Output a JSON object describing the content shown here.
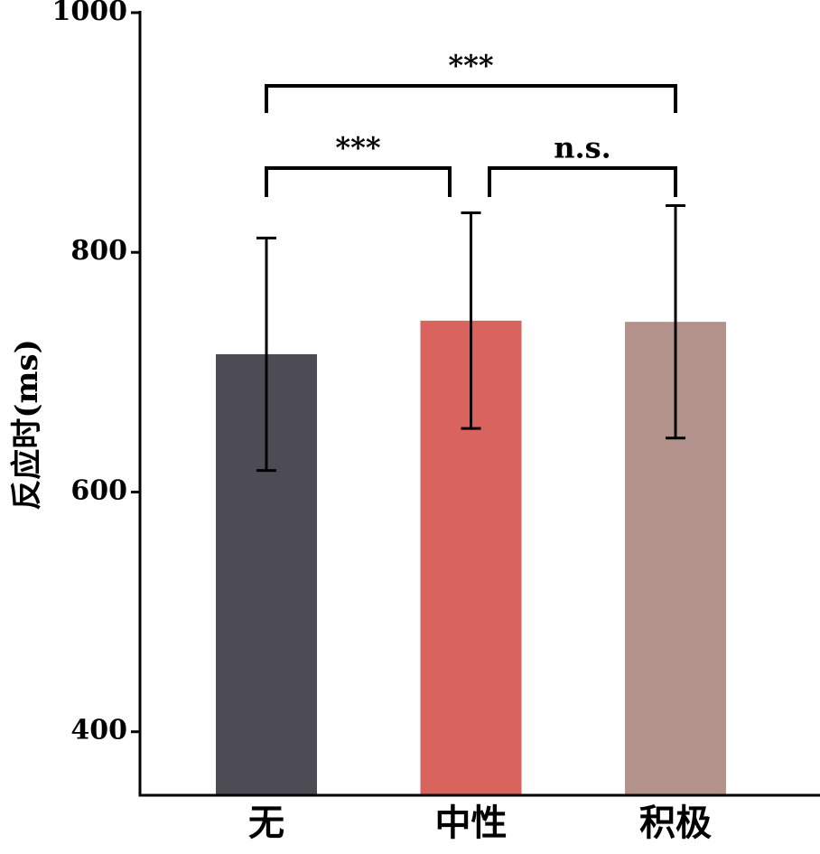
{
  "chart_data": {
    "type": "bar",
    "y_label": "反应时(ms)",
    "categories": [
      "无",
      "中性",
      "积极"
    ],
    "values": [
      715,
      743,
      742
    ],
    "errors": [
      97,
      90,
      97
    ],
    "colors": [
      "#4d4b53",
      "#d9635d",
      "#b3928c"
    ],
    "ylim": [
      347,
      1000
    ],
    "yticks": [
      400,
      600,
      800,
      1000
    ],
    "annotations": [
      "***",
      "***",
      "n.s."
    ]
  }
}
